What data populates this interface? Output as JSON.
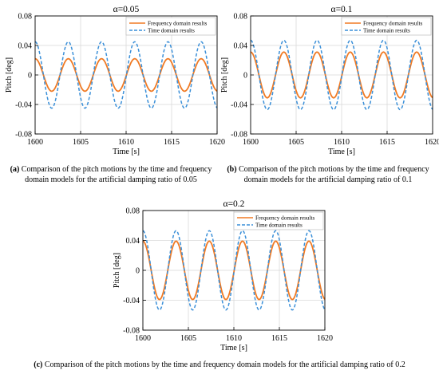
{
  "colors": {
    "frequency": "#f07a24",
    "time": "#3a8fd8",
    "axis": "#000000",
    "grid": "#d9d9d9"
  },
  "chart_data": [
    {
      "id": "a",
      "type": "line",
      "title": "α=0.05",
      "xlabel": "Time [s]",
      "ylabel": "Pitch [deg]",
      "xlim": [
        1600,
        1620
      ],
      "ylim": [
        -0.08,
        0.08
      ],
      "xticks": [
        "1600",
        "1605",
        "1610",
        "1615",
        "1620"
      ],
      "yticks": [
        "0.08",
        "0.04",
        "0",
        "-0.04",
        "-0.08"
      ],
      "grid": true,
      "legend": "top-right",
      "period": 3.65,
      "series": [
        {
          "name": "Frequency domain results",
          "style": "solid",
          "amplitude": 0.022,
          "phase": 0.0
        },
        {
          "name": "Time domain results",
          "style": "dashed",
          "amplitude": 0.045,
          "phase": 0.0
        }
      ],
      "caption": {
        "label": "(a)",
        "text": " Comparison of the pitch motions by the time and frequency domain models for the artificial damping ratio of 0.05"
      }
    },
    {
      "id": "b",
      "type": "line",
      "title": "α=0.1",
      "xlabel": "Time [s]",
      "ylabel": "Pitch [deg]",
      "xlim": [
        1600,
        1620
      ],
      "ylim": [
        -0.08,
        0.08
      ],
      "xticks": [
        "1600",
        "1605",
        "1610",
        "1615",
        "1620"
      ],
      "yticks": [
        "0.08",
        "0.04",
        "0",
        "-0.04",
        "-0.08"
      ],
      "grid": true,
      "legend": "top-right",
      "period": 3.65,
      "series": [
        {
          "name": "Frequency domain results",
          "style": "solid",
          "amplitude": 0.031,
          "phase": 0.0
        },
        {
          "name": "Time domain results",
          "style": "dashed",
          "amplitude": 0.047,
          "phase": 0.0
        }
      ],
      "caption": {
        "label": "(b)",
        "text": " Comparison of the pitch motions by the time and frequency domain models for the artificial damping ratio of 0.1"
      }
    },
    {
      "id": "c",
      "type": "line",
      "title": "α=0.2",
      "xlabel": "Time [s]",
      "ylabel": "Pitch [deg]",
      "xlim": [
        1600,
        1620
      ],
      "ylim": [
        -0.08,
        0.08
      ],
      "xticks": [
        "1600",
        "1605",
        "1610",
        "1615",
        "1620"
      ],
      "yticks": [
        "0.08",
        "0.04",
        "0",
        "-0.04",
        "-0.08"
      ],
      "grid": true,
      "legend": "top-right",
      "period": 3.65,
      "series": [
        {
          "name": "Frequency domain results",
          "style": "solid",
          "amplitude": 0.039,
          "phase": 0.0
        },
        {
          "name": "Time domain results",
          "style": "dashed",
          "amplitude": 0.053,
          "phase": 0.0
        }
      ],
      "caption": {
        "label": "(c)",
        "text": " Comparison of the pitch motions by the time and frequency domain models for the artificial damping ratio of 0.2"
      }
    }
  ]
}
